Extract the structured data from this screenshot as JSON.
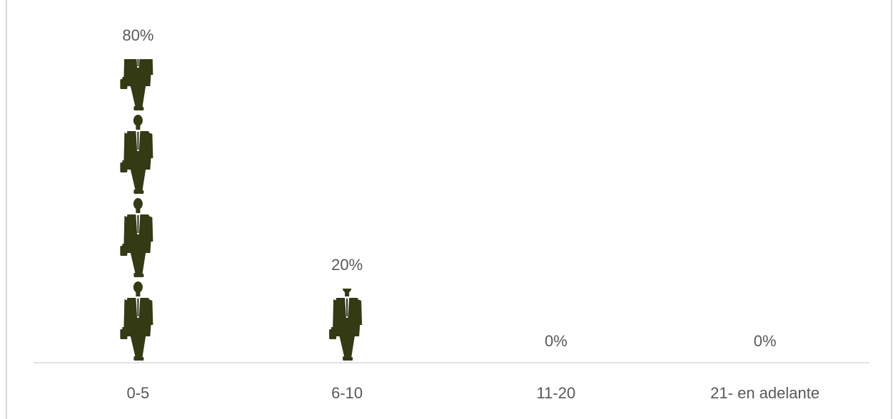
{
  "chart_data": {
    "type": "bar",
    "categories": [
      "0-5",
      "6-10",
      "11-20",
      "21- en adelante"
    ],
    "values": [
      80,
      20,
      0,
      0
    ],
    "data_labels": [
      "80%",
      "20%",
      "0%",
      "0%"
    ],
    "ylim": [
      0,
      80
    ],
    "unit": "%",
    "grid": false,
    "legend": "none",
    "colors": {
      "icon": "#333a14",
      "axis": "#d9d9d9",
      "text": "#595959"
    },
    "mark_icon": "businessman-walking-icon"
  }
}
